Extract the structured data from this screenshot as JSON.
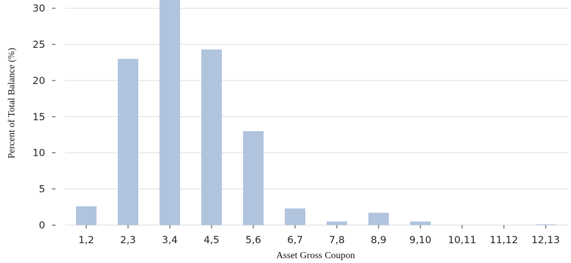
{
  "chart_data": {
    "type": "bar",
    "title": "",
    "xlabel": "Asset Gross Coupon",
    "ylabel": "Percent of Total Balance (%)",
    "categories": [
      "1,2",
      "2,3",
      "3,4",
      "4,5",
      "5,6",
      "6,7",
      "7,8",
      "8,9",
      "9,10",
      "10,11",
      "11,12",
      "12,13"
    ],
    "values": [
      2.6,
      23.0,
      31.5,
      24.3,
      13.0,
      2.3,
      0.5,
      1.7,
      0.5,
      0.0,
      0.0,
      0.1
    ],
    "yticks": [
      0,
      5,
      10,
      15,
      20,
      25,
      30
    ],
    "ylim": [
      0,
      31.3
    ],
    "grid": "horizontal",
    "bar_color": "#b0c4de"
  }
}
